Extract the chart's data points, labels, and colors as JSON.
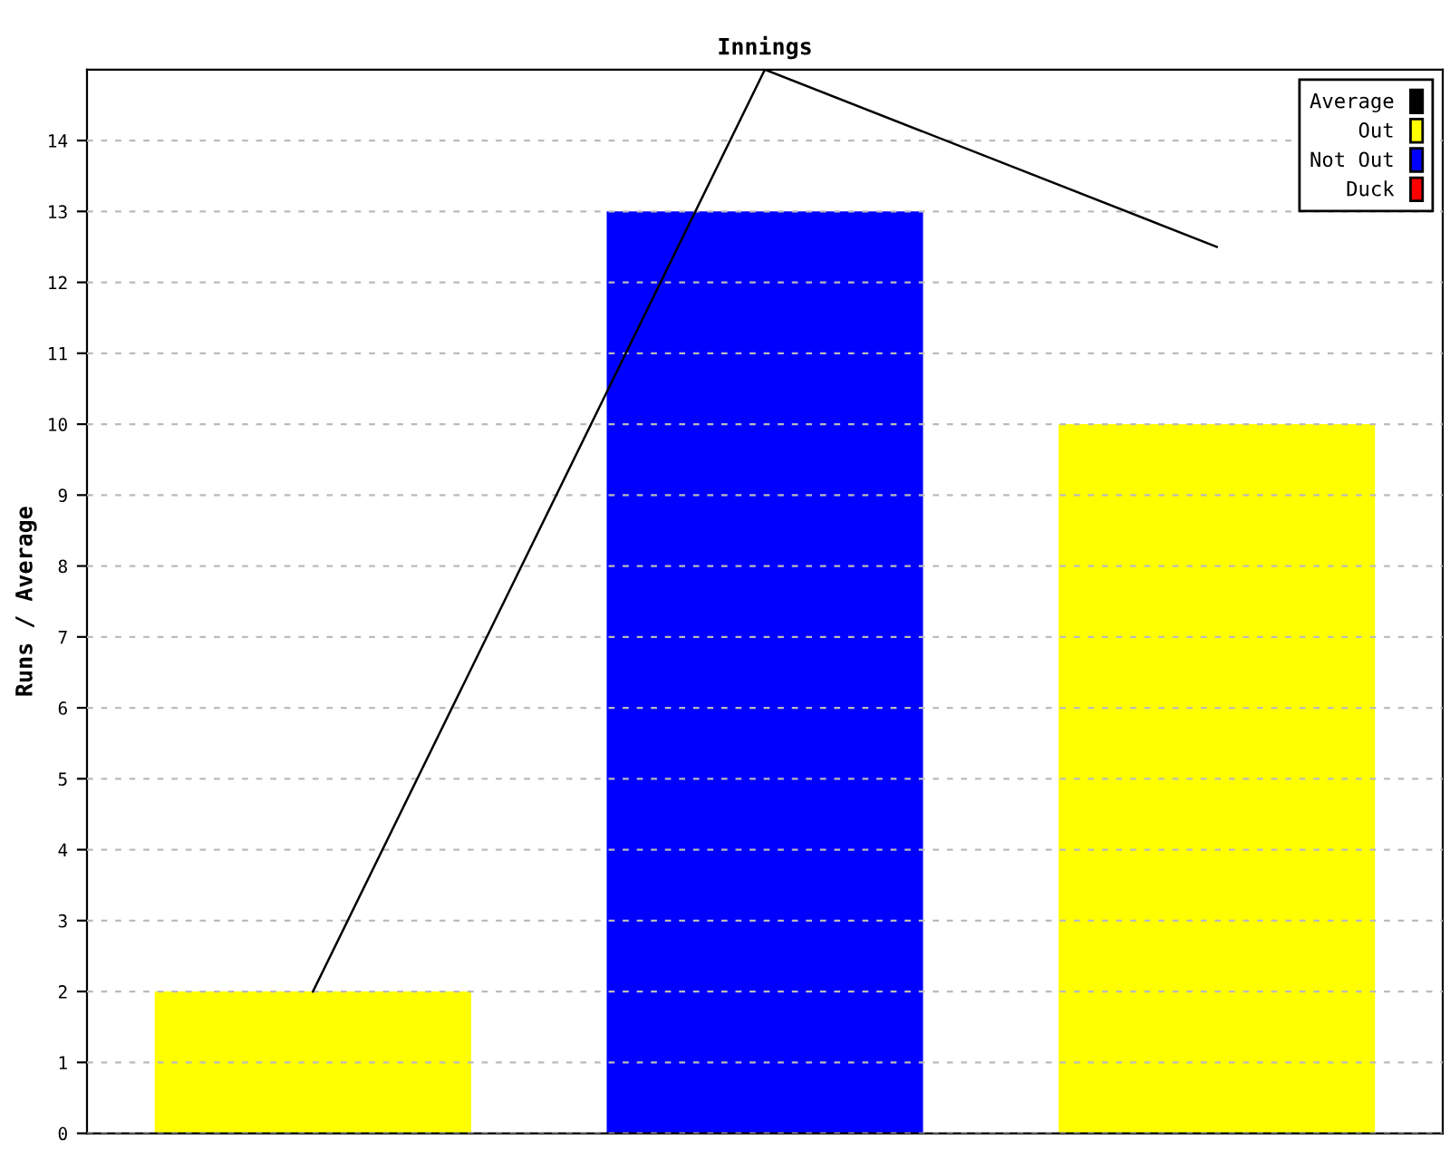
{
  "chart_data": {
    "type": "bar",
    "title": "Innings",
    "ylabel": "Runs / Average",
    "categories": [
      null,
      null,
      null
    ],
    "series": [
      {
        "name": "Average",
        "type": "line",
        "color": "#000000",
        "values": [
          2,
          15,
          12.5
        ]
      },
      {
        "name": "Out",
        "color": "#ffff00",
        "values": [
          2,
          null,
          10
        ]
      },
      {
        "name": "Not Out",
        "color": "#0000ff",
        "values": [
          null,
          13,
          null
        ]
      },
      {
        "name": "Duck",
        "color": "#ff0000",
        "values": [
          null,
          null,
          null
        ]
      }
    ],
    "ylim": [
      0,
      15
    ],
    "yticks": [
      0,
      1,
      2,
      3,
      4,
      5,
      6,
      7,
      8,
      9,
      10,
      11,
      12,
      13,
      14
    ],
    "grid": "y",
    "legend": "top right",
    "marker": "none",
    "line_style": "solid"
  }
}
